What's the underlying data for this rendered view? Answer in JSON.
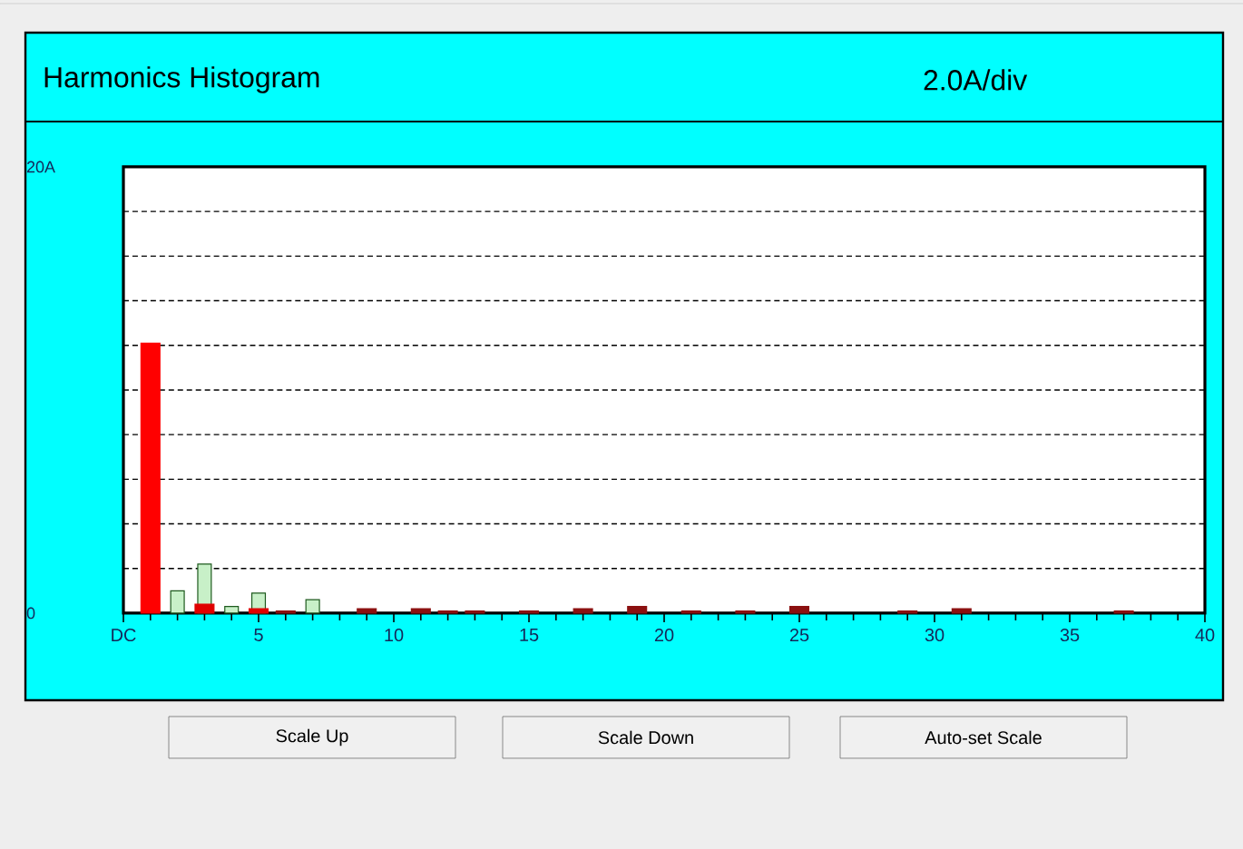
{
  "chart_data": {
    "type": "bar",
    "title": "Harmonics Histogram",
    "subtitle": "2.0A/div",
    "x": [
      1,
      2,
      3,
      4,
      5,
      6,
      7,
      8,
      9,
      10,
      11,
      12,
      13,
      14,
      15,
      16,
      17,
      18,
      19,
      20,
      21,
      22,
      23,
      24,
      25,
      26,
      27,
      28,
      29,
      30,
      31,
      32,
      33,
      34,
      35,
      36,
      37
    ],
    "series": [
      {
        "color": "#c8f0c8",
        "values": [
          null,
          1.0,
          2.2,
          0.3,
          0.9,
          null,
          0.6,
          null,
          null,
          null,
          null,
          null,
          null,
          null,
          null,
          null,
          null,
          null,
          null,
          null,
          null,
          null,
          null,
          null,
          null,
          null,
          null,
          null,
          null,
          null,
          null,
          null,
          null,
          null,
          null,
          null,
          null
        ]
      },
      {
        "colors": [
          "#ff0000",
          "#ff0000",
          "#e00000",
          "#a00000",
          "#e00000",
          "#8b1010",
          "#8b1010",
          "#8b1010",
          "#8b1010",
          "#8b1010",
          "#8b1010",
          "#8b1010",
          "#8b1010",
          "#8b1010",
          "#8b1010",
          "#8b1010",
          "#8b1010",
          "#8b1010",
          "#8b1010",
          "#8b1010",
          "#8b1010",
          "#8b1010",
          "#8b1010",
          "#8b1010",
          "#8b1010",
          "#8b1010",
          "#8b1010",
          "#8b1010",
          "#8b1010",
          "#8b1010",
          "#8b1010",
          "#8b1010",
          "#8b1010",
          "#8b1010",
          "#8b1010",
          "#8b1010",
          "#8b1010"
        ],
        "values": [
          12.1,
          null,
          0.4,
          null,
          0.2,
          0.1,
          null,
          null,
          0.2,
          null,
          0.2,
          0.1,
          0.1,
          null,
          0.1,
          null,
          0.2,
          null,
          0.3,
          null,
          0.1,
          null,
          0.1,
          null,
          0.3,
          null,
          null,
          null,
          0.1,
          null,
          0.2,
          null,
          null,
          null,
          null,
          null,
          0.1
        ]
      }
    ],
    "xlim": [
      0,
      40
    ],
    "xticks": [
      {
        "value": 0,
        "label": "DC"
      },
      5,
      10,
      15,
      20,
      25,
      30,
      35,
      40
    ],
    "ylim": [
      0,
      20
    ],
    "yticks": [
      {
        "value": 0,
        "label": "0"
      },
      {
        "value": 2,
        "label": null
      },
      {
        "value": 4,
        "label": null
      },
      {
        "value": 6,
        "label": null
      },
      {
        "value": 8,
        "label": null
      },
      {
        "value": 10,
        "label": null
      },
      {
        "value": 12,
        "label": null
      },
      {
        "value": 14,
        "label": null
      },
      {
        "value": 16,
        "label": null
      },
      {
        "value": 18,
        "label": null
      },
      {
        "value": 20,
        "label": "20A"
      }
    ],
    "grid": "y",
    "annotations": [
      "Scale Up",
      "Scale Down",
      "Auto-set Scale"
    ]
  }
}
